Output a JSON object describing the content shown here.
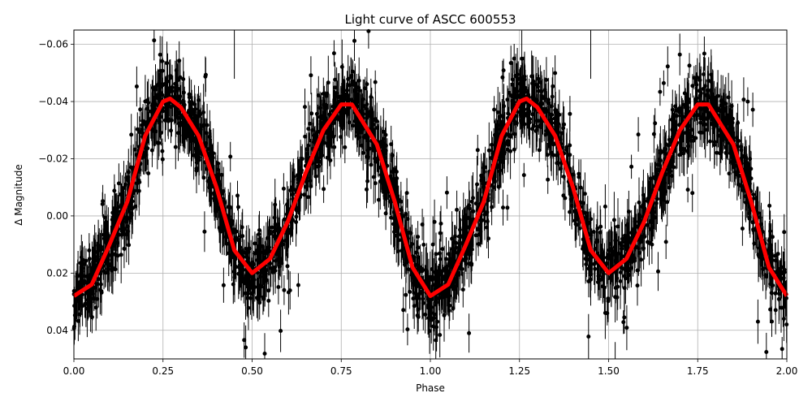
{
  "chart_data": {
    "type": "scatter",
    "title": "Light curve of ASCC 600553",
    "xlabel": "Phase",
    "ylabel": "Δ Magnitude",
    "xlim": [
      0.0,
      2.0
    ],
    "ylim": [
      0.05,
      -0.065
    ],
    "y_inverted": true,
    "grid": true,
    "legend": null,
    "x_ticks": [
      "0.00",
      "0.25",
      "0.50",
      "0.75",
      "1.00",
      "1.25",
      "1.50",
      "1.75",
      "2.00"
    ],
    "y_ticks": [
      "−0.06",
      "−0.04",
      "−0.02",
      "0.00",
      "0.02",
      "0.04"
    ],
    "series": [
      {
        "name": "observations",
        "style": "black points with vertical error bars",
        "color": "#000000",
        "description": "Dense phase-folded photometry scattered around the model curve, spread roughly ±0.02 mag, with sparse outliers"
      },
      {
        "name": "model fit",
        "style": "thick line",
        "color": "#ff0000",
        "x": [
          0.0,
          0.05,
          0.1,
          0.15,
          0.2,
          0.25,
          0.27,
          0.3,
          0.35,
          0.4,
          0.45,
          0.5,
          0.55,
          0.6,
          0.65,
          0.7,
          0.75,
          0.78,
          0.85,
          0.9,
          0.95,
          1.0,
          1.05,
          1.1,
          1.15,
          1.2,
          1.25,
          1.27,
          1.3,
          1.35,
          1.4,
          1.45,
          1.5,
          1.55,
          1.6,
          1.65,
          1.7,
          1.75,
          1.78,
          1.85,
          1.9,
          1.95,
          2.0
        ],
        "y": [
          0.028,
          0.024,
          0.01,
          -0.005,
          -0.028,
          -0.04,
          -0.041,
          -0.038,
          -0.028,
          -0.01,
          0.012,
          0.02,
          0.015,
          0.002,
          -0.015,
          -0.03,
          -0.039,
          -0.039,
          -0.025,
          -0.005,
          0.018,
          0.028,
          0.024,
          0.01,
          -0.005,
          -0.028,
          -0.04,
          -0.041,
          -0.038,
          -0.028,
          -0.01,
          0.012,
          0.02,
          0.015,
          0.002,
          -0.015,
          -0.03,
          -0.039,
          -0.039,
          -0.025,
          -0.005,
          0.018,
          0.028
        ]
      }
    ],
    "annotations": [
      {
        "x": 0.45,
        "note": "isolated error bar reaching top of plot"
      },
      {
        "x": 1.45,
        "note": "isolated error bar reaching top of plot"
      }
    ]
  }
}
